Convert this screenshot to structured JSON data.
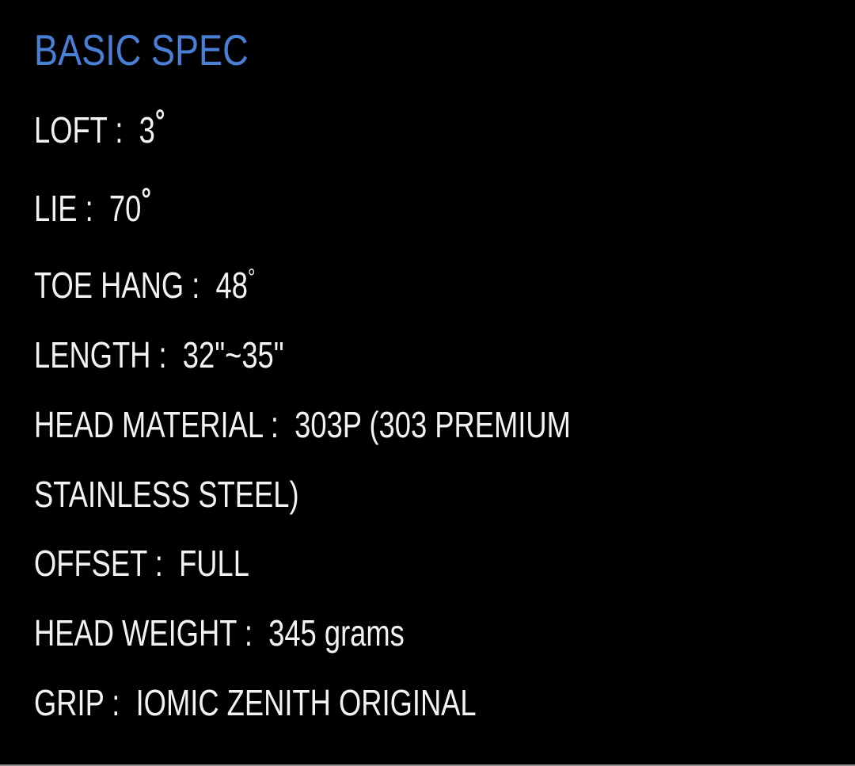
{
  "title": "BASIC SPEC",
  "colors": {
    "title": "#4a7fd6",
    "text": "#f2f2f2",
    "background": "#000000"
  },
  "specs": [
    {
      "label": "LOFT :  ",
      "value": "3",
      "degree": "°"
    },
    {
      "label": "LIE :  ",
      "value": "70",
      "degree": "°"
    },
    {
      "label": "TOE HANG :  ",
      "value": "48",
      "degree": "°"
    },
    {
      "label": "LENGTH :  ",
      "value": "32\"~35\""
    },
    {
      "label": "HEAD MATERIAL :  ",
      "value": "303P (303 PREMIUM STAINLESS STEEL)"
    },
    {
      "label": "OFFSET :  ",
      "value": "FULL"
    },
    {
      "label": "HEAD WEIGHT :  ",
      "value": "345 grams"
    },
    {
      "label": "GRIP :  ",
      "value": "IOMIC ZENITH ORIGINAL"
    }
  ]
}
